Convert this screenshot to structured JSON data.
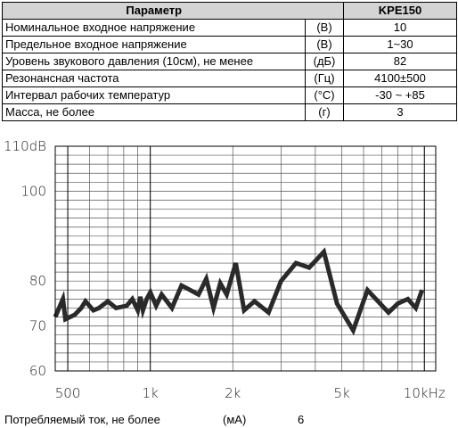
{
  "table": {
    "headers": {
      "parameter": "Параметр",
      "model": "KPE150"
    },
    "rows": [
      {
        "name": "Номинальное входное напряжение",
        "unit": "(В)",
        "value": "10"
      },
      {
        "name": "Предельное входное напряжение",
        "unit": "(В)",
        "value": "1~30"
      },
      {
        "name": "Уровень звукового давления (10см), не менее",
        "unit": "(дБ)",
        "value": "82"
      },
      {
        "name": "Резонансная частота",
        "unit": "(Гц)",
        "value": "4100±500"
      },
      {
        "name": "Интервал рабочих температур",
        "unit": "(°C)",
        "value": "-30 ~ +85"
      },
      {
        "name": "Масса, не более",
        "unit": "(г)",
        "value": "3"
      }
    ]
  },
  "chart_data": {
    "type": "line",
    "x_scale": "log",
    "xlim": [
      450,
      11000
    ],
    "ylim": [
      60,
      110
    ],
    "grid": true,
    "y_ticks": [
      {
        "value": 110,
        "label": "110dB"
      },
      {
        "value": 100,
        "label": "100"
      },
      {
        "value": 80,
        "label": "80"
      },
      {
        "value": 70,
        "label": "70"
      },
      {
        "value": 60,
        "label": "60"
      }
    ],
    "x_ticks": [
      {
        "value": 500,
        "label": "500"
      },
      {
        "value": 1000,
        "label": "1k"
      },
      {
        "value": 2000,
        "label": "2k"
      },
      {
        "value": 5000,
        "label": "5k"
      },
      {
        "value": 10000,
        "label": "10kHz"
      }
    ],
    "series": [
      {
        "x": [
          450,
          480,
          490,
          530,
          560,
          580,
          620,
          650,
          700,
          750,
          820,
          860,
          900,
          920,
          940,
          970,
          1000,
          1050,
          1100,
          1200,
          1300,
          1350,
          1500,
          1600,
          1700,
          1800,
          1900,
          2050,
          2200,
          2400,
          2700,
          3000,
          3400,
          3800,
          4300,
          4800,
          5500,
          6200,
          7400,
          8000,
          8700,
          9300,
          9800
        ],
        "y": [
          72,
          76,
          71.5,
          72.5,
          74,
          75.5,
          73.5,
          74,
          75.5,
          74,
          74.5,
          76,
          73.5,
          76.5,
          73.5,
          76,
          77.5,
          74.5,
          77,
          74,
          79,
          78.5,
          77,
          80.5,
          74,
          79.5,
          77,
          84,
          73.5,
          75.5,
          73,
          80,
          84,
          83,
          86.5,
          75,
          69,
          78,
          73,
          75,
          76,
          74,
          78
        ]
      }
    ]
  },
  "footer": {
    "label": "Потребляемый ток, не более",
    "unit": "(мА)",
    "value": "6"
  }
}
